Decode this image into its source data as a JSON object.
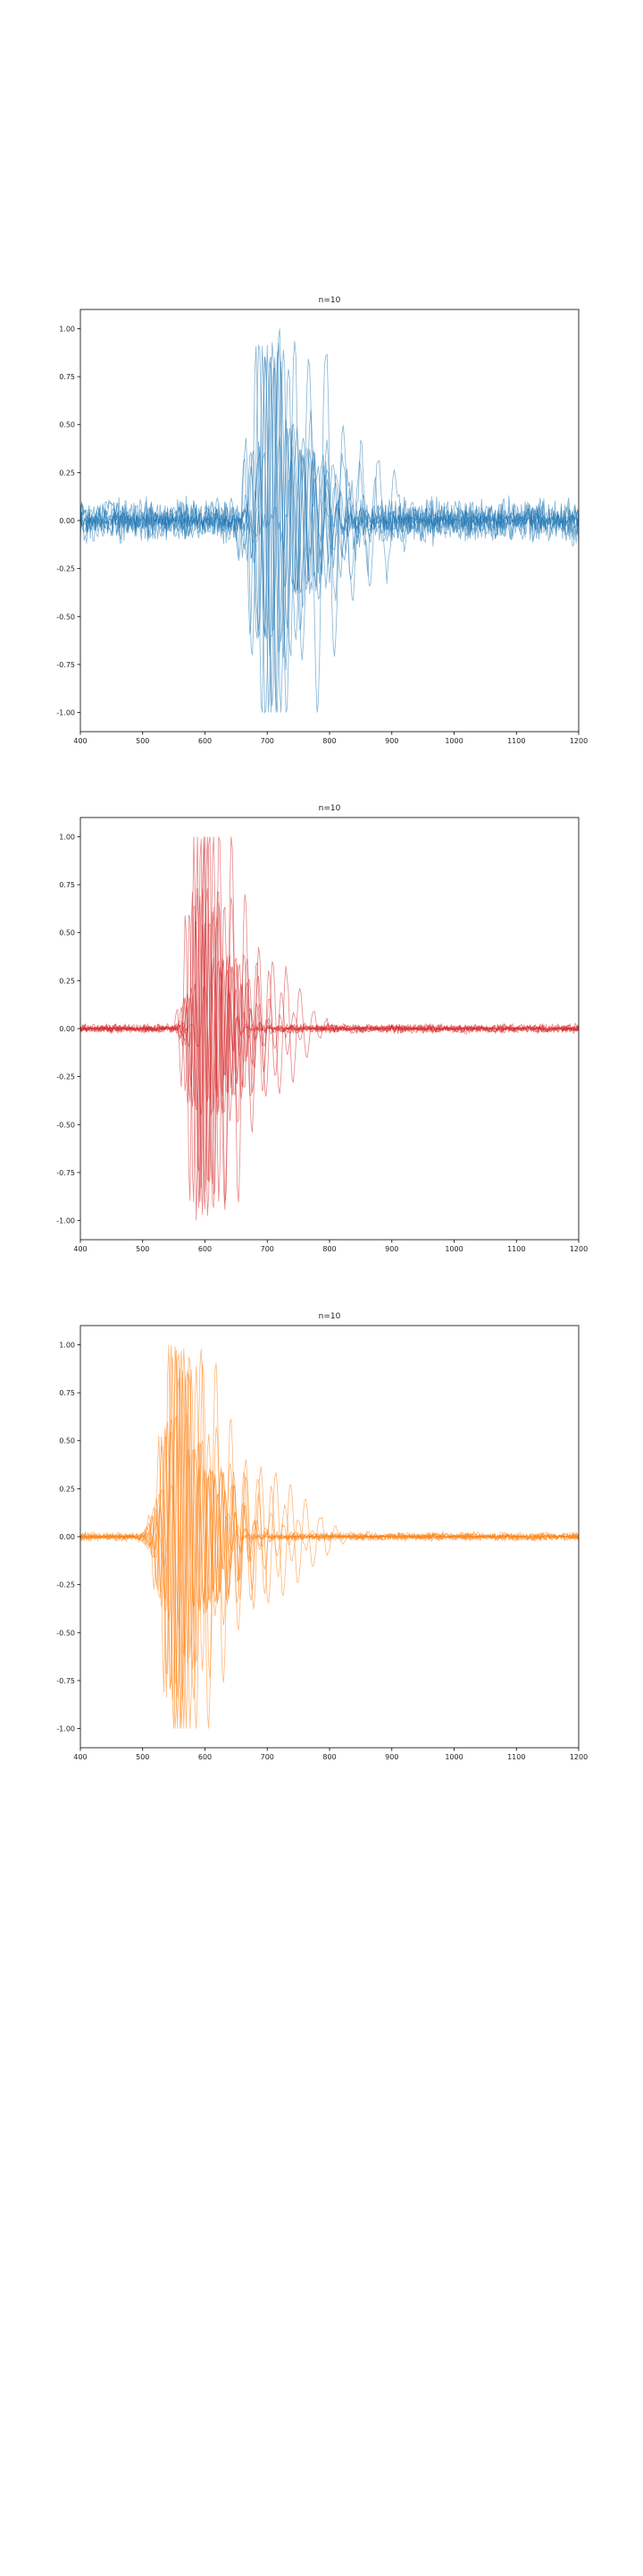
{
  "chart_data": [
    {
      "type": "line",
      "title": "n=10",
      "color": "#1f77b4",
      "xlim": [
        400,
        1200
      ],
      "ylim": [
        -1.1,
        1.1
      ],
      "xticks": [
        400,
        500,
        600,
        700,
        800,
        900,
        1000,
        1100,
        1200
      ],
      "xtick_labels": [
        "400",
        "500",
        "600",
        "700",
        "800",
        "900",
        "1000",
        "1100",
        "1200"
      ],
      "yticks": [
        -1.0,
        -0.75,
        -0.5,
        -0.25,
        0.0,
        0.25,
        0.5,
        0.75,
        1.0
      ],
      "ytick_labels": [
        "-1.00",
        "-0.75",
        "-0.50",
        "-0.25",
        "0.00",
        "0.25",
        "0.50",
        "0.75",
        "1.00"
      ],
      "series_count": 10,
      "series_center_x": [
        700,
        695,
        712,
        720,
        705,
        690,
        730,
        715,
        780,
        708
      ],
      "series_period": [
        20,
        22,
        18,
        24,
        20,
        19,
        26,
        21,
        28,
        23
      ],
      "series_width": [
        28,
        32,
        26,
        35,
        30,
        25,
        40,
        30,
        38,
        33
      ],
      "series_noise": [
        0.12,
        0.1,
        0.14,
        0.11,
        0.13,
        0.12,
        0.1,
        0.15,
        0.11,
        0.12
      ],
      "grid": false,
      "legend": "none"
    },
    {
      "type": "line",
      "title": "n=10",
      "color": "#d62728",
      "xlim": [
        400,
        1200
      ],
      "ylim": [
        -1.1,
        1.1
      ],
      "xticks": [
        400,
        500,
        600,
        700,
        800,
        900,
        1000,
        1100,
        1200
      ],
      "xtick_labels": [
        "400",
        "500",
        "600",
        "700",
        "800",
        "900",
        "1000",
        "1100",
        "1200"
      ],
      "yticks": [
        -1.0,
        -0.75,
        -0.5,
        -0.25,
        0.0,
        0.25,
        0.5,
        0.75,
        1.0
      ],
      "ytick_labels": [
        "-1.00",
        "-0.75",
        "-0.50",
        "-0.25",
        "0.00",
        "0.25",
        "0.50",
        "0.75",
        "1.00"
      ],
      "series_count": 10,
      "series_center_x": [
        590,
        600,
        585,
        610,
        595,
        580,
        620,
        605,
        640,
        598
      ],
      "series_period": [
        14,
        16,
        13,
        18,
        15,
        14,
        20,
        16,
        22,
        15
      ],
      "series_width": [
        18,
        22,
        16,
        26,
        20,
        17,
        30,
        22,
        34,
        19
      ],
      "series_noise": [
        0.02,
        0.03,
        0.02,
        0.025,
        0.02,
        0.03,
        0.02,
        0.025,
        0.03,
        0.02
      ],
      "grid": false,
      "legend": "none"
    },
    {
      "type": "line",
      "title": "n=10",
      "color": "#ff7f0e",
      "xlim": [
        400,
        1200
      ],
      "ylim": [
        -1.1,
        1.1
      ],
      "xticks": [
        400,
        500,
        600,
        700,
        800,
        900,
        1000,
        1100,
        1200
      ],
      "xtick_labels": [
        "400",
        "500",
        "600",
        "700",
        "800",
        "900",
        "1000",
        "1100",
        "1200"
      ],
      "yticks": [
        -1.0,
        -0.75,
        -0.5,
        -0.25,
        0.0,
        0.25,
        0.5,
        0.75,
        1.0
      ],
      "ytick_labels": [
        "-1.00",
        "-0.75",
        "-0.50",
        "-0.25",
        "0.00",
        "0.25",
        "0.50",
        "0.75",
        "1.00"
      ],
      "series_count": 10,
      "series_center_x": [
        555,
        560,
        548,
        570,
        565,
        545,
        580,
        558,
        600,
        552
      ],
      "series_period": [
        16,
        18,
        15,
        20,
        17,
        16,
        22,
        18,
        24,
        17
      ],
      "series_width": [
        24,
        30,
        22,
        36,
        28,
        24,
        42,
        30,
        48,
        26
      ],
      "series_noise": [
        0.02,
        0.025,
        0.02,
        0.02,
        0.025,
        0.02,
        0.03,
        0.02,
        0.025,
        0.02
      ],
      "grid": false,
      "legend": "none"
    }
  ]
}
